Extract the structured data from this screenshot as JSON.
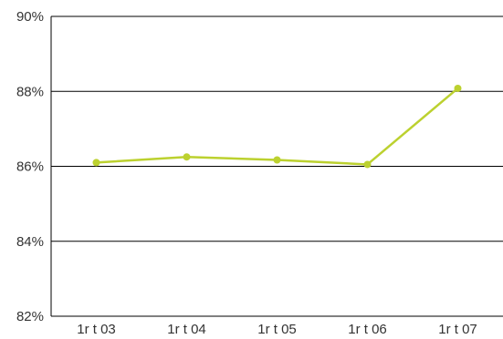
{
  "chart_data": {
    "type": "line",
    "categories": [
      "1r t 03",
      "1r t 04",
      "1r t 05",
      "1r t 06",
      "1r t 07"
    ],
    "series": [
      {
        "values": [
          86.1,
          86.25,
          86.17,
          86.05,
          88.08
        ]
      }
    ],
    "ylim": [
      82,
      90
    ],
    "yticks": [
      82,
      84,
      86,
      88,
      90
    ],
    "ytick_labels": [
      "82%",
      "84%",
      "86%",
      "88%",
      "90%"
    ],
    "grid": true,
    "legend": "none",
    "colors": {
      "line": "#bcd12f",
      "marker": "#bcd12f",
      "grid": "#000000",
      "axis": "#000000",
      "text": "#333333"
    }
  }
}
